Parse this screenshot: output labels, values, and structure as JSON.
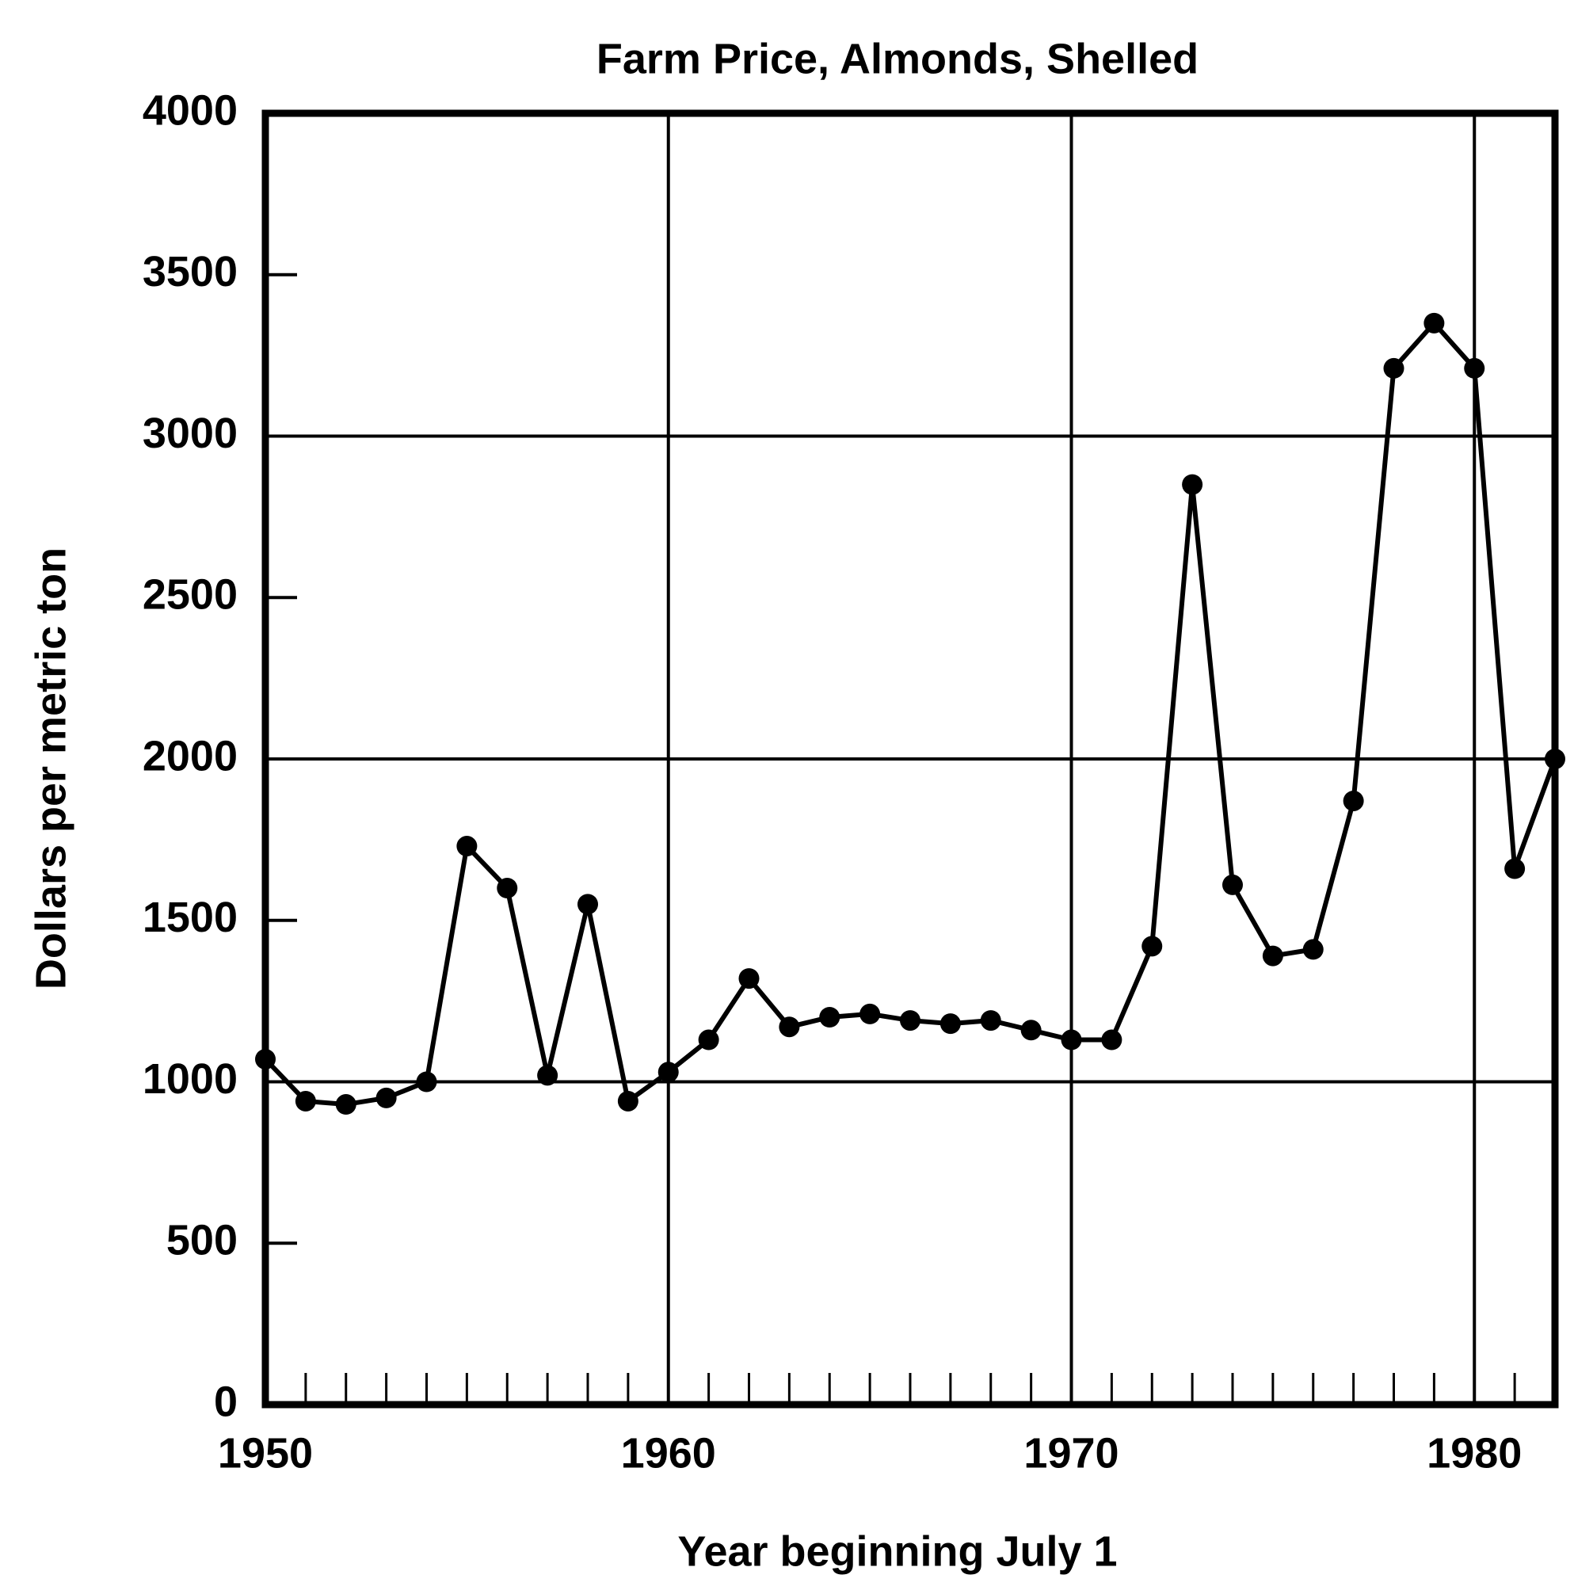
{
  "chart_data": {
    "type": "line",
    "title": "Farm Price, Almonds, Shelled",
    "x_label": "Year beginning July 1",
    "y_label": "Dollars per metric ton",
    "x": [
      1950,
      1951,
      1952,
      1953,
      1954,
      1955,
      1956,
      1957,
      1958,
      1959,
      1960,
      1961,
      1962,
      1963,
      1964,
      1965,
      1966,
      1967,
      1968,
      1969,
      1970,
      1971,
      1972,
      1973,
      1974,
      1975,
      1976,
      1977,
      1978,
      1979,
      1980,
      1981,
      1982
    ],
    "series": [
      {
        "name": "Farm price",
        "color": "#000000",
        "values": [
          1070,
          940,
          930,
          950,
          1000,
          1730,
          1600,
          1020,
          1550,
          940,
          1030,
          1130,
          1320,
          1170,
          1200,
          1210,
          1190,
          1180,
          1190,
          1160,
          1130,
          1130,
          1420,
          2850,
          1610,
          1390,
          1410,
          1870,
          3210,
          3350,
          3210,
          1660,
          2000
        ]
      }
    ],
    "xlim": [
      1950,
      1982
    ],
    "xticks": [
      1950,
      1960,
      1970,
      1980
    ],
    "ylim": [
      0,
      4000
    ],
    "yticks": [
      0,
      500,
      1000,
      1500,
      2000,
      2500,
      3000,
      3500,
      4000
    ],
    "grid": true
  }
}
